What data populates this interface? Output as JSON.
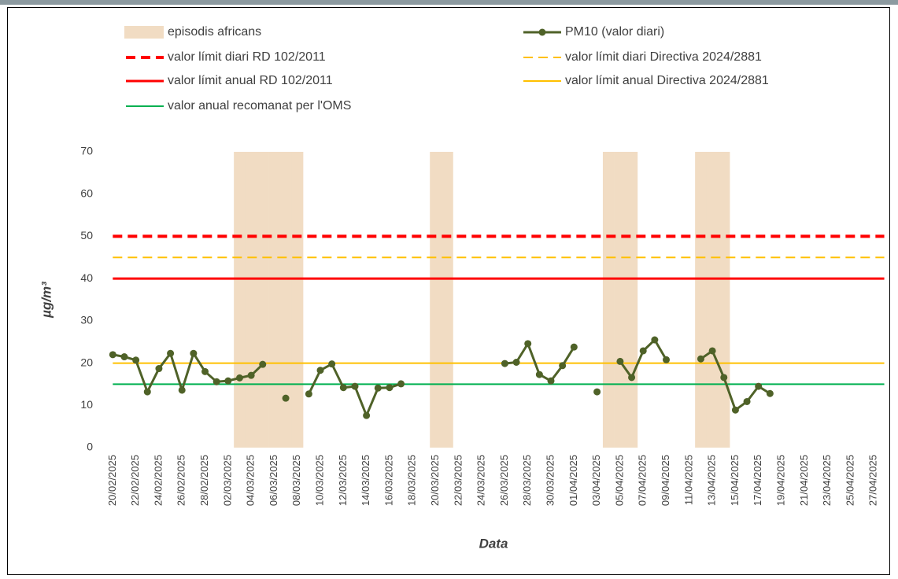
{
  "chart_data": {
    "type": "line",
    "x_label": "Data",
    "y_label": "µg/m³",
    "ylim": [
      0,
      70
    ],
    "yticks": [
      0,
      10,
      20,
      30,
      40,
      50,
      60,
      70
    ],
    "grid": false,
    "categories": [
      "20/02/2025",
      null,
      "22/02/2025",
      null,
      "24/02/2025",
      null,
      "26/02/2025",
      null,
      "28/02/2025",
      null,
      "02/03/2025",
      null,
      "04/03/2025",
      null,
      "06/03/2025",
      null,
      "08/03/2025",
      null,
      "10/03/2025",
      null,
      "12/03/2025",
      null,
      "14/03/2025",
      null,
      "16/03/2025",
      null,
      "18/03/2025",
      null,
      "20/03/2025",
      null,
      "22/03/2025",
      null,
      "24/03/2025",
      null,
      "26/03/2025",
      null,
      "28/03/2025",
      null,
      "30/03/2025",
      null,
      "01/04/2025",
      null,
      "03/04/2025",
      null,
      "05/04/2025",
      null,
      "07/04/2025",
      null,
      "09/04/2025",
      null,
      "11/04/2025",
      null,
      "13/04/2025",
      null,
      "15/04/2025",
      null,
      "17/04/2025",
      null,
      "19/04/2025",
      null,
      "21/04/2025",
      null,
      "23/04/2025",
      null,
      "25/04/2025",
      null,
      "27/04/2025"
    ],
    "series": [
      {
        "name": "episodis africans",
        "type": "bar",
        "color": "#f1dcc3",
        "values": [
          null,
          null,
          null,
          null,
          null,
          null,
          null,
          null,
          null,
          null,
          null,
          70,
          70,
          70,
          70,
          70,
          70,
          null,
          null,
          null,
          null,
          null,
          null,
          null,
          null,
          null,
          null,
          null,
          70,
          70,
          null,
          null,
          null,
          null,
          null,
          null,
          null,
          null,
          null,
          null,
          null,
          null,
          null,
          70,
          70,
          70,
          null,
          null,
          null,
          null,
          null,
          70,
          70,
          70,
          null,
          null,
          null,
          null,
          null,
          null,
          null,
          null,
          null,
          null,
          null,
          null,
          null
        ]
      },
      {
        "name": "PM10 (valor diari)",
        "type": "line",
        "color": "#4f6228",
        "values": [
          22,
          21.5,
          20.7,
          13.2,
          18.7,
          22.3,
          13.6,
          22.3,
          18,
          15.6,
          15.8,
          16.5,
          17.1,
          19.7,
          null,
          11.7,
          null,
          12.7,
          18.3,
          19.8,
          14.2,
          14.5,
          7.6,
          14.1,
          14.2,
          15.1,
          null,
          null,
          null,
          null,
          null,
          null,
          null,
          null,
          19.9,
          20.2,
          24.6,
          17.3,
          15.8,
          19.4,
          23.8,
          null,
          13.2,
          null,
          20.4,
          16.6,
          22.9,
          25.5,
          20.8,
          null,
          null,
          21.0,
          22.9,
          16.6,
          8.9,
          10.9,
          14.5,
          12.8,
          null,
          null,
          null,
          null,
          null,
          null,
          null,
          null,
          null
        ]
      }
    ],
    "reference_lines": [
      {
        "name": "valor límit diari RD 102/2011",
        "value": 50,
        "color": "#ff0000",
        "dashed": true,
        "width": 4
      },
      {
        "name": "valor límit diari Directiva 2024/2881",
        "value": 45,
        "color": "#ffc000",
        "dashed": true,
        "width": 2
      },
      {
        "name": "valor límit anual RD 102/2011",
        "value": 40,
        "color": "#ff0000",
        "dashed": false,
        "width": 3
      },
      {
        "name": "valor límit anual Directiva 2024/2881",
        "value": 20,
        "color": "#ffc000",
        "dashed": false,
        "width": 2
      },
      {
        "name": "valor anual recomanat per l'OMS",
        "value": 15,
        "color": "#00b050",
        "dashed": false,
        "width": 2
      }
    ]
  }
}
